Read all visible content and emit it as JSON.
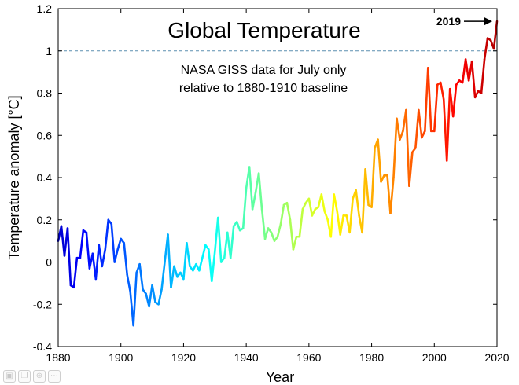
{
  "chart_data": {
    "type": "line",
    "title": "Global Temperature",
    "subtitle_lines": [
      "NASA GISS data for July only",
      "relative to 1880-1910 baseline"
    ],
    "xlabel": "Year",
    "ylabel": "Temperature anomaly [°C]",
    "xlim": [
      1880,
      2020
    ],
    "ylim": [
      -0.4,
      1.2
    ],
    "xticks": [
      1880,
      1900,
      1920,
      1940,
      1960,
      1980,
      2000,
      2020
    ],
    "yticks": [
      -0.4,
      -0.2,
      0,
      0.2,
      0.4,
      0.6,
      0.8,
      1,
      1.2
    ],
    "ytick_labels": [
      "-0.4",
      "-0.2",
      "0",
      "0.2",
      "0.4",
      "0.6",
      "0.8",
      "1",
      "1.2"
    ],
    "reference_line": {
      "y": 1.0,
      "style": "dashed",
      "color": "#5b8fb0"
    },
    "annotation": {
      "text": "2019",
      "arrow_to_year": 2019
    },
    "color_scale": "jet",
    "series": [
      {
        "name": "July temperature anomaly",
        "x_start": 1880,
        "x_step": 1,
        "values": [
          0.1,
          0.17,
          0.03,
          0.16,
          -0.11,
          -0.12,
          0.02,
          0.02,
          0.15,
          0.14,
          -0.03,
          0.04,
          -0.08,
          0.08,
          -0.02,
          0.06,
          0.2,
          0.18,
          0.0,
          0.06,
          0.11,
          0.09,
          -0.06,
          -0.14,
          -0.3,
          -0.05,
          -0.01,
          -0.13,
          -0.15,
          -0.21,
          -0.11,
          -0.19,
          -0.2,
          -0.13,
          0.0,
          0.13,
          -0.12,
          -0.02,
          -0.07,
          -0.05,
          -0.08,
          0.09,
          -0.02,
          -0.04,
          -0.01,
          -0.04,
          0.02,
          0.08,
          0.06,
          -0.09,
          0.05,
          0.21,
          0.0,
          0.02,
          0.14,
          0.02,
          0.17,
          0.19,
          0.15,
          0.16,
          0.35,
          0.45,
          0.25,
          0.33,
          0.42,
          0.25,
          0.11,
          0.16,
          0.14,
          0.1,
          0.12,
          0.18,
          0.27,
          0.28,
          0.2,
          0.06,
          0.12,
          0.12,
          0.25,
          0.28,
          0.3,
          0.22,
          0.25,
          0.26,
          0.32,
          0.24,
          0.2,
          0.12,
          0.32,
          0.24,
          0.13,
          0.22,
          0.22,
          0.14,
          0.3,
          0.34,
          0.22,
          0.14,
          0.44,
          0.27,
          0.26,
          0.54,
          0.58,
          0.38,
          0.41,
          0.41,
          0.23,
          0.4,
          0.68,
          0.58,
          0.62,
          0.72,
          0.36,
          0.52,
          0.54,
          0.72,
          0.59,
          0.62,
          0.92,
          0.62,
          0.62,
          0.84,
          0.85,
          0.77,
          0.48,
          0.82,
          0.69,
          0.84,
          0.86,
          0.85,
          0.96,
          0.86,
          0.95,
          0.78,
          0.81,
          0.8,
          0.96,
          1.06,
          1.05,
          1.01,
          1.14
        ]
      }
    ]
  },
  "footer_icons": [
    "image-icon",
    "copy-icon",
    "zoom-icon",
    "more-icon"
  ]
}
